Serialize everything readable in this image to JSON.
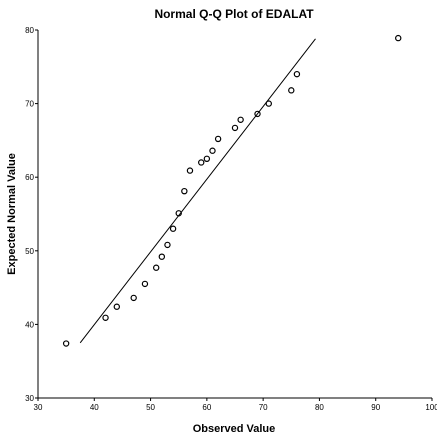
{
  "chart_data": {
    "type": "scatter",
    "title": "Normal Q-Q Plot of EDALAT",
    "xlabel": "Observed Value",
    "ylabel": "Expected Normal Value",
    "xlim": [
      30,
      100
    ],
    "ylim": [
      30,
      80
    ],
    "x_ticks": [
      "30",
      "40",
      "50",
      "60",
      "70",
      "80",
      "90",
      "100"
    ],
    "y_ticks": [
      "30",
      "40",
      "50",
      "60",
      "70",
      "80"
    ],
    "grid": false,
    "legend": "none",
    "points": [
      {
        "x": 35,
        "y": 37.4
      },
      {
        "x": 42,
        "y": 40.9
      },
      {
        "x": 44,
        "y": 42.4
      },
      {
        "x": 47,
        "y": 43.6
      },
      {
        "x": 49,
        "y": 45.5
      },
      {
        "x": 51,
        "y": 47.7
      },
      {
        "x": 52,
        "y": 49.2
      },
      {
        "x": 53,
        "y": 50.8
      },
      {
        "x": 54,
        "y": 53.0
      },
      {
        "x": 55,
        "y": 55.1
      },
      {
        "x": 56,
        "y": 58.1
      },
      {
        "x": 57,
        "y": 60.9
      },
      {
        "x": 59,
        "y": 62.0
      },
      {
        "x": 60,
        "y": 62.5
      },
      {
        "x": 61,
        "y": 63.6
      },
      {
        "x": 62,
        "y": 65.2
      },
      {
        "x": 65,
        "y": 66.7
      },
      {
        "x": 66,
        "y": 67.8
      },
      {
        "x": 69,
        "y": 68.6
      },
      {
        "x": 71,
        "y": 70.0
      },
      {
        "x": 75,
        "y": 71.8
      },
      {
        "x": 76,
        "y": 74.0
      },
      {
        "x": 94,
        "y": 78.9
      }
    ],
    "reference_line": {
      "x": [
        37.5,
        79.3
      ],
      "y": [
        37.5,
        78.8
      ]
    },
    "colors": {
      "marker": "#000000",
      "line": "#000000",
      "axis": "#000000",
      "background": "#ffffff"
    }
  }
}
